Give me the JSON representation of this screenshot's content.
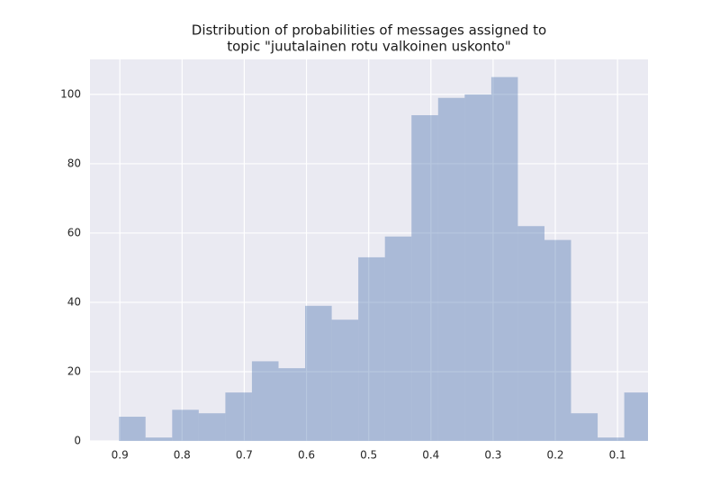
{
  "chart_data": {
    "type": "histogram",
    "title": [
      "Distribution of probabilities of messages assigned to",
      "topic \"juutalainen rotu valkoinen uskonto\""
    ],
    "bins": [
      0.0464,
      0.0892,
      0.1319,
      0.1747,
      0.2174,
      0.2602,
      0.3029,
      0.3457,
      0.3884,
      0.4312,
      0.4739,
      0.5167,
      0.5594,
      0.6022,
      0.6449,
      0.6877,
      0.7304,
      0.7732,
      0.8159,
      0.8587,
      0.9014
    ],
    "values": [
      14,
      1,
      8,
      58,
      62,
      105,
      100,
      99,
      94,
      59,
      53,
      35,
      39,
      21,
      23,
      14,
      8,
      9,
      1,
      7
    ],
    "color": "#4c72b0",
    "xlim": [
      0.948,
      0.051
    ],
    "xticks": [
      0.9,
      0.8,
      0.7,
      0.6,
      0.5,
      0.4,
      0.3,
      0.2,
      0.1
    ],
    "ylim": [
      0,
      110.1
    ],
    "yticks": [
      0,
      20,
      40,
      60,
      80,
      100
    ],
    "grid": true
  }
}
